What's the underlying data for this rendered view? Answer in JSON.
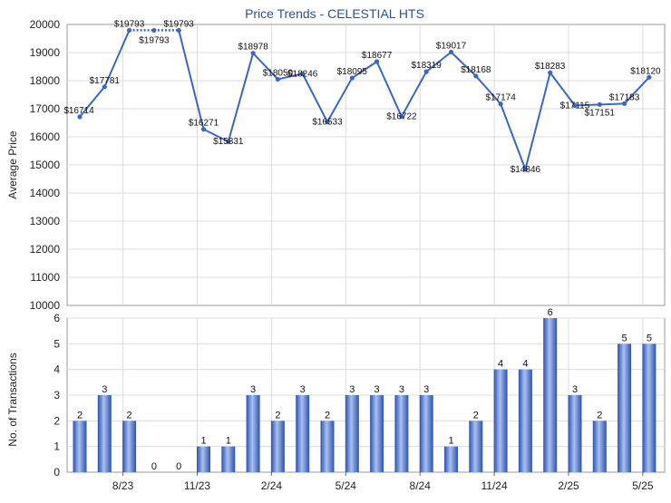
{
  "chart_data": [
    {
      "type": "line",
      "title": "Price Trends - CELESTIAL HTS",
      "ylabel": "Average Price",
      "ylim": [
        10000,
        20000
      ],
      "yticks": [
        10000,
        11000,
        12000,
        13000,
        14000,
        15000,
        16000,
        17000,
        18000,
        19000,
        20000
      ],
      "xticks": [
        "8/23",
        "11/23",
        "2/24",
        "5/24",
        "8/24",
        "11/24",
        "2/25",
        "5/25"
      ],
      "grid": true,
      "colors": {
        "line": "#3a66c4",
        "marker": "#3a66c4",
        "gap_line": "#3a66c4"
      },
      "series": [
        {
          "values": [
            16714,
            17781,
            19793,
            19793,
            19793,
            16271,
            15831,
            18978,
            18050,
            18246,
            16533,
            18095,
            18677,
            16722,
            18319,
            19017,
            18168,
            17174,
            14846,
            18283,
            17115,
            17151,
            17183,
            18120
          ],
          "labels": [
            "$16714",
            "$17781",
            "$19793",
            "$19793",
            "$19793",
            "$16271",
            "$15831",
            "$18978",
            "$18050",
            "$18246",
            "$16533",
            "$18095",
            "$18677",
            "$16722",
            "$18319",
            "$19017",
            "$18168",
            "$17174",
            "$14846",
            "$18283",
            "$17115",
            "$17151",
            "$17183",
            "$18120"
          ]
        }
      ]
    },
    {
      "type": "bar",
      "ylabel": "No. of Transactions",
      "ylim": [
        0,
        6
      ],
      "yticks": [
        0,
        1,
        2,
        3,
        4,
        5,
        6
      ],
      "xticks": [
        "8/23",
        "11/23",
        "2/24",
        "5/24",
        "8/24",
        "11/24",
        "2/25",
        "5/25"
      ],
      "grid": true,
      "colors": {
        "bar_dark": "#2c52b0",
        "bar_light": "#a9c0f0"
      },
      "values": [
        2,
        3,
        2,
        0,
        0,
        1,
        1,
        3,
        2,
        3,
        2,
        3,
        3,
        3,
        3,
        1,
        2,
        4,
        4,
        6,
        3,
        2,
        5,
        5
      ]
    }
  ]
}
